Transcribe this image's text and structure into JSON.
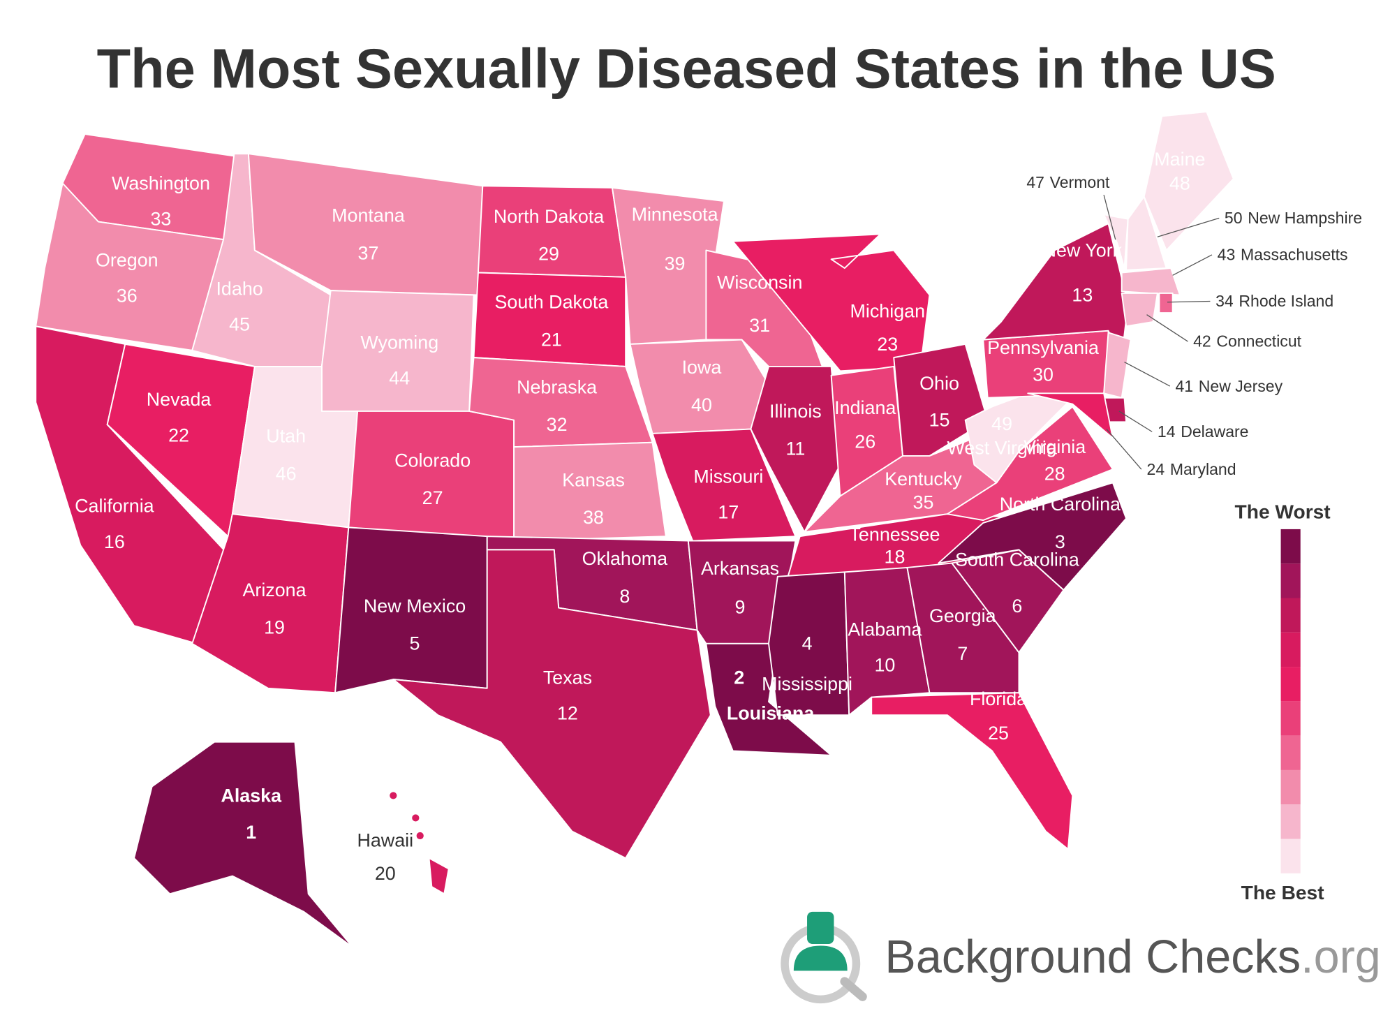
{
  "title": "The Most Sexually Diseased States in the US",
  "states": [
    {
      "name": "Washington",
      "rank": 33
    },
    {
      "name": "Oregon",
      "rank": 36
    },
    {
      "name": "California",
      "rank": 16
    },
    {
      "name": "Nevada",
      "rank": 22
    },
    {
      "name": "Idaho",
      "rank": 45
    },
    {
      "name": "Montana",
      "rank": 37
    },
    {
      "name": "Wyoming",
      "rank": 44
    },
    {
      "name": "Utah",
      "rank": 46
    },
    {
      "name": "Arizona",
      "rank": 19
    },
    {
      "name": "Colorado",
      "rank": 27
    },
    {
      "name": "New Mexico",
      "rank": 5
    },
    {
      "name": "North Dakota",
      "rank": 29
    },
    {
      "name": "South Dakota",
      "rank": 21
    },
    {
      "name": "Nebraska",
      "rank": 32
    },
    {
      "name": "Kansas",
      "rank": 38
    },
    {
      "name": "Oklahoma",
      "rank": 8
    },
    {
      "name": "Texas",
      "rank": 12
    },
    {
      "name": "Minnesota",
      "rank": 39
    },
    {
      "name": "Iowa",
      "rank": 40
    },
    {
      "name": "Missouri",
      "rank": 17
    },
    {
      "name": "Arkansas",
      "rank": 9
    },
    {
      "name": "Louisiana",
      "rank": 2
    },
    {
      "name": "Wisconsin",
      "rank": 31
    },
    {
      "name": "Illinois",
      "rank": 11
    },
    {
      "name": "Michigan",
      "rank": 23
    },
    {
      "name": "Indiana",
      "rank": 26
    },
    {
      "name": "Ohio",
      "rank": 15
    },
    {
      "name": "Kentucky",
      "rank": 35
    },
    {
      "name": "Tennessee",
      "rank": 18
    },
    {
      "name": "Mississippi",
      "rank": 4
    },
    {
      "name": "Alabama",
      "rank": 10
    },
    {
      "name": "Georgia",
      "rank": 7
    },
    {
      "name": "Florida",
      "rank": 25
    },
    {
      "name": "South Carolina",
      "rank": 6
    },
    {
      "name": "North Carolina",
      "rank": 3
    },
    {
      "name": "Virginia",
      "rank": 28
    },
    {
      "name": "West Virginia",
      "rank": 49
    },
    {
      "name": "Pennsylvania",
      "rank": 30
    },
    {
      "name": "New York",
      "rank": 13
    },
    {
      "name": "Maine",
      "rank": 48
    },
    {
      "name": "Vermont",
      "rank": 47
    },
    {
      "name": "New Hampshire",
      "rank": 50
    },
    {
      "name": "Massachusetts",
      "rank": 43
    },
    {
      "name": "Rhode Island",
      "rank": 34
    },
    {
      "name": "Connecticut",
      "rank": 42
    },
    {
      "name": "New Jersey",
      "rank": 41
    },
    {
      "name": "Delaware",
      "rank": 14
    },
    {
      "name": "Maryland",
      "rank": 24
    },
    {
      "name": "Alaska",
      "rank": 1
    },
    {
      "name": "Hawaii",
      "rank": 20
    }
  ],
  "legend": {
    "top": "The Worst",
    "bottom": "The Best"
  },
  "brand": {
    "name": "Background Checks",
    "suffix": ".org"
  }
}
